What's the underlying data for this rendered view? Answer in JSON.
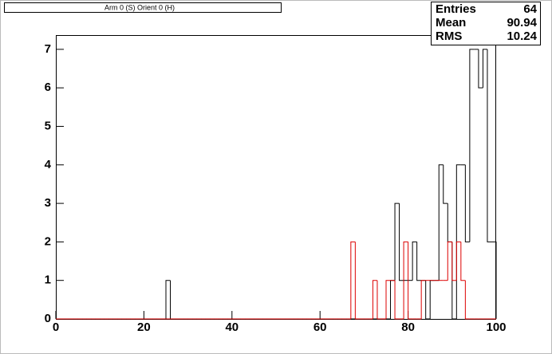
{
  "chart_data": {
    "type": "histogram",
    "title": "Arm 0 (S) Orient 0 (H)",
    "stats": {
      "labels": [
        "Entries",
        "Mean",
        "RMS"
      ],
      "values": [
        "64",
        "90.94",
        "10.24"
      ]
    },
    "bins": [
      0,
      1,
      2,
      3,
      4,
      5,
      6,
      7,
      8,
      9,
      10,
      11,
      12,
      13,
      14,
      15,
      16,
      17,
      18,
      19,
      20,
      21,
      22,
      23,
      24,
      25,
      26,
      27,
      28,
      29,
      30,
      31,
      32,
      33,
      34,
      35,
      36,
      37,
      38,
      39,
      40,
      41,
      42,
      43,
      44,
      45,
      46,
      47,
      48,
      49,
      50,
      51,
      52,
      53,
      54,
      55,
      56,
      57,
      58,
      59,
      60,
      61,
      62,
      63,
      64,
      65,
      66,
      67,
      68,
      69,
      70,
      71,
      72,
      73,
      74,
      75,
      76,
      77,
      78,
      79,
      80,
      81,
      82,
      83,
      84,
      85,
      86,
      87,
      88,
      89,
      90,
      91,
      92,
      93,
      94,
      95,
      96,
      97,
      98,
      99,
      100
    ],
    "series": [
      {
        "color": "#000000",
        "values": [
          0,
          0,
          0,
          0,
          0,
          0,
          0,
          0,
          0,
          0,
          0,
          0,
          0,
          0,
          0,
          0,
          0,
          0,
          0,
          0,
          0,
          0,
          0,
          0,
          0,
          1,
          0,
          0,
          0,
          0,
          0,
          0,
          0,
          0,
          0,
          0,
          0,
          0,
          0,
          0,
          0,
          0,
          0,
          0,
          0,
          0,
          0,
          0,
          0,
          0,
          0,
          0,
          0,
          0,
          0,
          0,
          0,
          0,
          0,
          0,
          0,
          0,
          0,
          0,
          0,
          0,
          0,
          0,
          0,
          0,
          0,
          0,
          0,
          0,
          0,
          0,
          1,
          3,
          1,
          1,
          1,
          2,
          1,
          1,
          0,
          1,
          1,
          4,
          3,
          2,
          0,
          4,
          4,
          2,
          7,
          7,
          6,
          7,
          2,
          2
        ]
      },
      {
        "color": "#dd0000",
        "values": [
          0,
          0,
          0,
          0,
          0,
          0,
          0,
          0,
          0,
          0,
          0,
          0,
          0,
          0,
          0,
          0,
          0,
          0,
          0,
          0,
          0,
          0,
          0,
          0,
          0,
          0,
          0,
          0,
          0,
          0,
          0,
          0,
          0,
          0,
          0,
          0,
          0,
          0,
          0,
          0,
          0,
          0,
          0,
          0,
          0,
          0,
          0,
          0,
          0,
          0,
          0,
          0,
          0,
          0,
          0,
          0,
          0,
          0,
          0,
          0,
          0,
          0,
          0,
          0,
          0,
          0,
          0,
          2,
          0,
          0,
          0,
          0,
          1,
          0,
          0,
          1,
          1,
          0,
          0,
          2,
          0,
          0,
          0,
          1,
          1,
          1,
          1,
          1,
          1,
          2,
          1,
          2,
          1,
          0,
          0,
          0,
          0,
          0,
          0,
          0
        ]
      }
    ],
    "xlim": [
      0,
      100
    ],
    "xticks": [
      0,
      20,
      40,
      60,
      80,
      100
    ],
    "ylim": [
      0,
      7.37
    ],
    "yticks": [
      0,
      1,
      2,
      3,
      4,
      5,
      6,
      7
    ]
  }
}
